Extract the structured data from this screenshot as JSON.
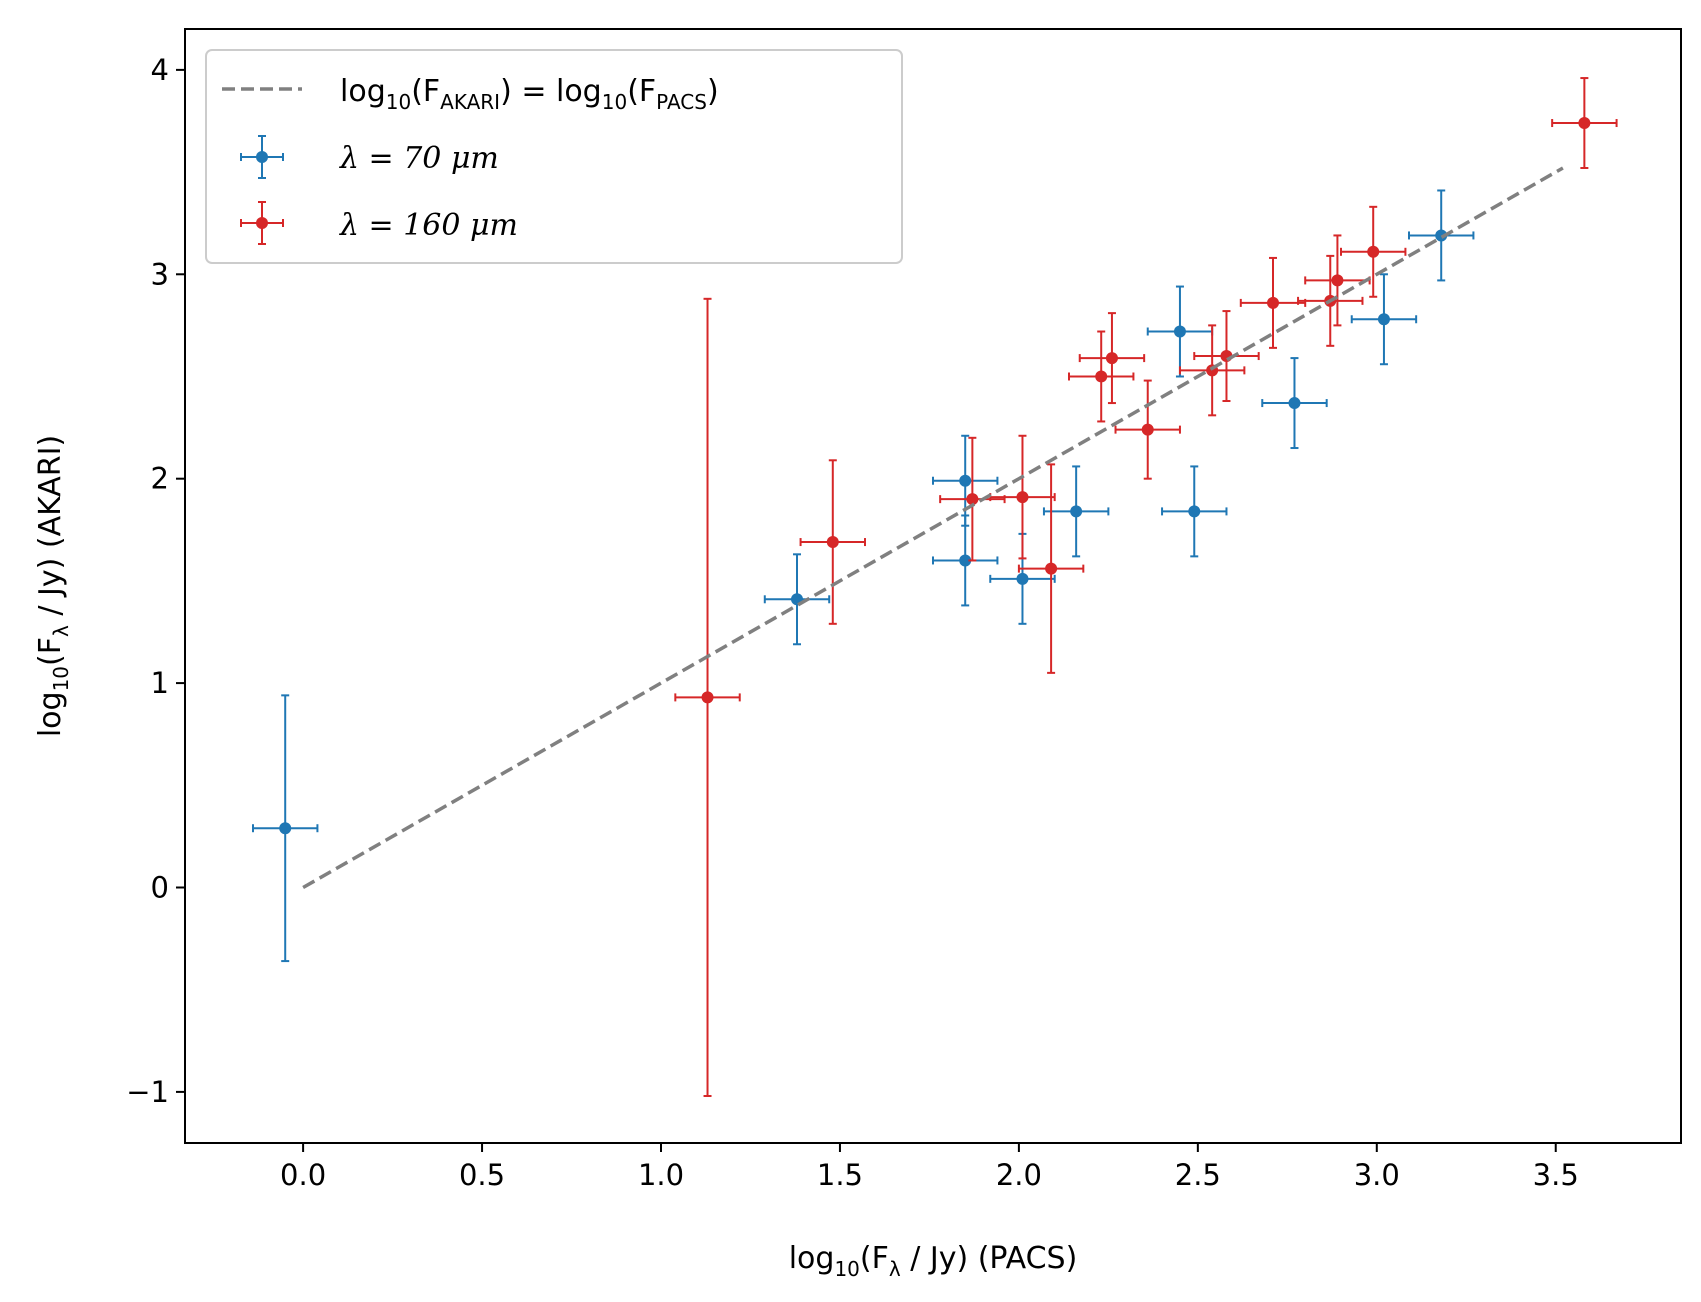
{
  "chart_data": {
    "type": "scatter",
    "title": "",
    "xlabel": {
      "pre": "log",
      "sub": "10",
      "mid": "(F",
      "lam": "λ",
      "post": " / Jy) (PACS)"
    },
    "ylabel": {
      "pre": "log",
      "sub": "10",
      "mid": "(F",
      "lam": "λ",
      "post": " / Jy) (AKARI)"
    },
    "xlim": [
      -0.33,
      3.85
    ],
    "ylim": [
      -1.25,
      4.2
    ],
    "xticks": [
      0.0,
      0.5,
      1.0,
      1.5,
      2.0,
      2.5,
      3.0,
      3.5
    ],
    "xtick_labels": [
      "0.0",
      "0.5",
      "1.0",
      "1.5",
      "2.0",
      "2.5",
      "3.0",
      "3.5"
    ],
    "yticks": [
      -1,
      0,
      1,
      2,
      3,
      4
    ],
    "ytick_labels": [
      "−1",
      "0",
      "1",
      "2",
      "3",
      "4"
    ],
    "grid": false,
    "legend_position": "top-left",
    "reference_line": {
      "x": [
        0.0,
        3.52
      ],
      "y": [
        0.0,
        3.52
      ],
      "color": "#808080",
      "style": "dashed",
      "legend": {
        "p1": "log",
        "s1": "10",
        "p2": "(F",
        "s2": "AKARI",
        "p3": ") = log",
        "s3": "10",
        "p4": "(F",
        "s4": "PACS",
        "p5": ")"
      }
    },
    "series": [
      {
        "name": "λ = 70 μm",
        "legend": {
          "lam": "λ",
          "eq": " = 70 ",
          "unit": "μm"
        },
        "color": "#1f77b4",
        "points": [
          {
            "x": -0.05,
            "y": 0.29,
            "xerr": 0.09,
            "yerr": 0.65
          },
          {
            "x": 1.38,
            "y": 1.41,
            "xerr": 0.09,
            "yerr": 0.22
          },
          {
            "x": 1.85,
            "y": 1.99,
            "xerr": 0.09,
            "yerr": 0.22
          },
          {
            "x": 1.85,
            "y": 1.6,
            "xerr": 0.09,
            "yerr": 0.22
          },
          {
            "x": 2.01,
            "y": 1.51,
            "xerr": 0.09,
            "yerr": 0.22
          },
          {
            "x": 2.16,
            "y": 1.84,
            "xerr": 0.09,
            "yerr": 0.22
          },
          {
            "x": 2.45,
            "y": 2.72,
            "xerr": 0.09,
            "yerr": 0.22
          },
          {
            "x": 2.49,
            "y": 1.84,
            "xerr": 0.09,
            "yerr": 0.22
          },
          {
            "x": 2.77,
            "y": 2.37,
            "xerr": 0.09,
            "yerr": 0.22
          },
          {
            "x": 3.02,
            "y": 2.78,
            "xerr": 0.09,
            "yerr": 0.22
          },
          {
            "x": 3.18,
            "y": 3.19,
            "xerr": 0.09,
            "yerr": 0.22
          }
        ]
      },
      {
        "name": "λ = 160 μm",
        "legend": {
          "lam": "λ",
          "eq": " = 160 ",
          "unit": "μm"
        },
        "color": "#d62728",
        "points": [
          {
            "x": 1.13,
            "y": 0.93,
            "xerr": 0.09,
            "yerr": 1.95
          },
          {
            "x": 1.48,
            "y": 1.69,
            "xerr": 0.09,
            "yerr": 0.4
          },
          {
            "x": 1.87,
            "y": 1.9,
            "xerr": 0.09,
            "yerr": 0.3
          },
          {
            "x": 2.01,
            "y": 1.91,
            "xerr": 0.09,
            "yerr": 0.3
          },
          {
            "x": 2.09,
            "y": 1.56,
            "xerr": 0.09,
            "yerr": 0.51
          },
          {
            "x": 2.23,
            "y": 2.5,
            "xerr": 0.09,
            "yerr": 0.22
          },
          {
            "x": 2.26,
            "y": 2.59,
            "xerr": 0.09,
            "yerr": 0.22
          },
          {
            "x": 2.36,
            "y": 2.24,
            "xerr": 0.09,
            "yerr": 0.24
          },
          {
            "x": 2.54,
            "y": 2.53,
            "xerr": 0.09,
            "yerr": 0.22
          },
          {
            "x": 2.58,
            "y": 2.6,
            "xerr": 0.09,
            "yerr": 0.22
          },
          {
            "x": 2.71,
            "y": 2.86,
            "xerr": 0.09,
            "yerr": 0.22
          },
          {
            "x": 2.87,
            "y": 2.87,
            "xerr": 0.09,
            "yerr": 0.22
          },
          {
            "x": 2.89,
            "y": 2.97,
            "xerr": 0.09,
            "yerr": 0.22
          },
          {
            "x": 2.99,
            "y": 3.11,
            "xerr": 0.09,
            "yerr": 0.22
          },
          {
            "x": 3.58,
            "y": 3.74,
            "xerr": 0.09,
            "yerr": 0.22
          }
        ]
      }
    ]
  }
}
